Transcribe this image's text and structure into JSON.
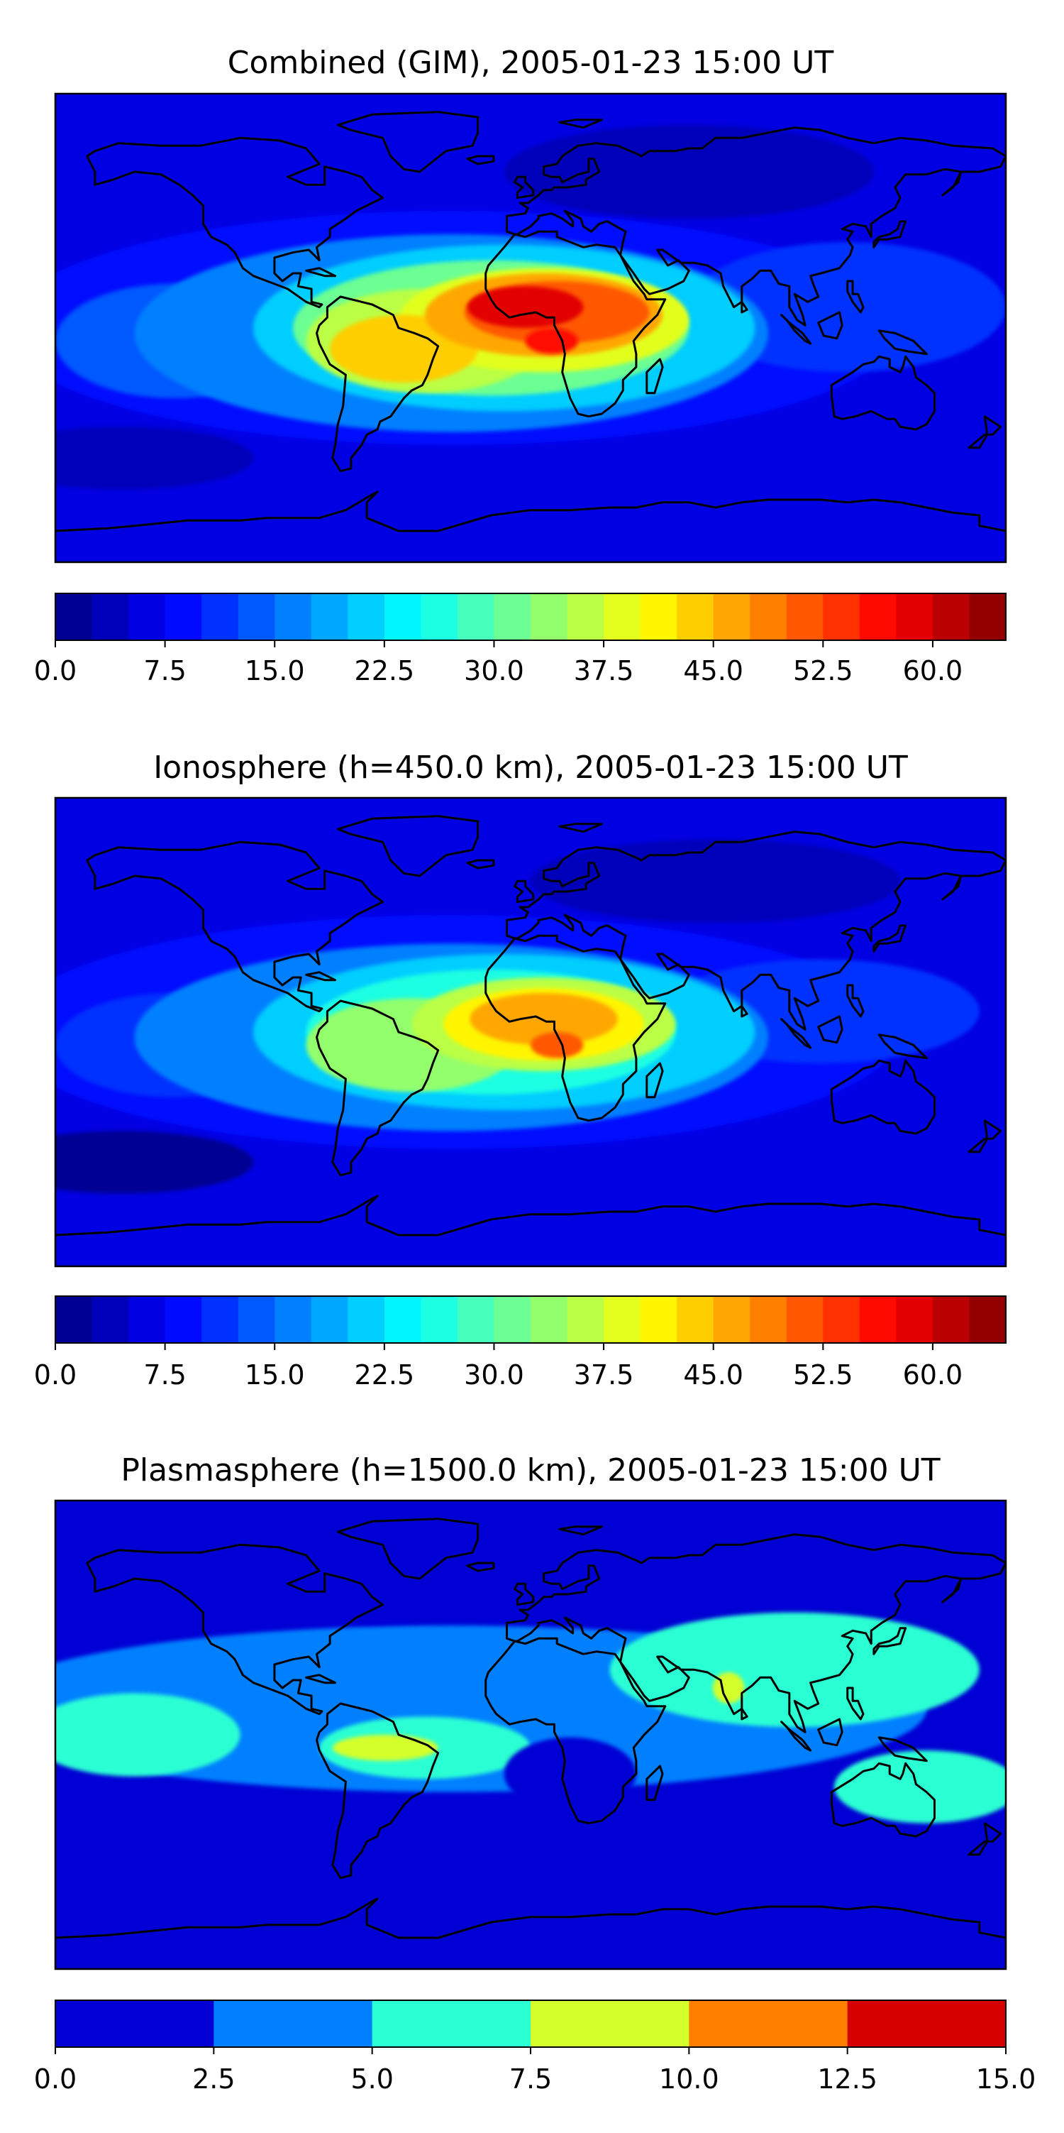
{
  "chart_data": [
    {
      "type": "heatmap",
      "title": "Combined (GIM), 2005-01-23 15:00 UT",
      "xlabel": "",
      "ylabel": "",
      "colorbar": {
        "min": 0.0,
        "max": 65.0,
        "levels": 26,
        "ticks": [
          0.0,
          7.5,
          15.0,
          22.5,
          30.0,
          37.5,
          45.0,
          52.5,
          60.0
        ],
        "tick_labels": [
          "0.0",
          "7.5",
          "15.0",
          "22.5",
          "30.0",
          "37.5",
          "45.0",
          "52.5",
          "60.0"
        ]
      },
      "features": [
        {
          "name": "equatorial-maximum-africa",
          "lon": 0,
          "lat": 5,
          "value": 58
        },
        {
          "name": "equatorial-maximum-south-america",
          "lon": -50,
          "lat": -10,
          "value": 44
        },
        {
          "name": "equatorial-band-west",
          "lon": -120,
          "lat": -5,
          "value": 20
        },
        {
          "name": "equatorial-band-east",
          "lon": 110,
          "lat": 0,
          "value": 17
        },
        {
          "name": "northern-low",
          "lon": 60,
          "lat": 60,
          "value": 4
        },
        {
          "name": "southern-low",
          "lon": -160,
          "lat": -50,
          "value": 3
        }
      ]
    },
    {
      "type": "heatmap",
      "title": "Ionosphere  (h=450.0 km), 2005-01-23 15:00 UT",
      "xlabel": "",
      "ylabel": "",
      "colorbar": {
        "min": 0.0,
        "max": 65.0,
        "levels": 26,
        "ticks": [
          0.0,
          7.5,
          15.0,
          22.5,
          30.0,
          37.5,
          45.0,
          52.5,
          60.0
        ],
        "tick_labels": [
          "0.0",
          "7.5",
          "15.0",
          "22.5",
          "30.0",
          "37.5",
          "45.0",
          "52.5",
          "60.0"
        ]
      },
      "features": [
        {
          "name": "equatorial-maximum-africa",
          "lon": 5,
          "lat": 0,
          "value": 50
        },
        {
          "name": "equatorial-maximum-south-america",
          "lon": -50,
          "lat": -10,
          "value": 38
        },
        {
          "name": "equatorial-band-west",
          "lon": -120,
          "lat": -5,
          "value": 15
        },
        {
          "name": "equatorial-band-east",
          "lon": 100,
          "lat": 5,
          "value": 14
        },
        {
          "name": "northern-low",
          "lon": 60,
          "lat": 55,
          "value": 3
        },
        {
          "name": "southern-low",
          "lon": -160,
          "lat": -50,
          "value": 2
        }
      ]
    },
    {
      "type": "heatmap",
      "title": "Plasmasphere (h=1500.0 km), 2005-01-23 15:00 UT",
      "xlabel": "",
      "ylabel": "",
      "colorbar": {
        "min": 0.0,
        "max": 15.0,
        "levels": 6,
        "ticks": [
          0.0,
          2.5,
          5.0,
          7.5,
          10.0,
          12.5,
          15.0
        ],
        "tick_labels": [
          "0.0",
          "2.5",
          "5.0",
          "7.5",
          "10.0",
          "12.5",
          "15.0"
        ]
      },
      "features": [
        {
          "name": "south-america-maximum",
          "lon": -55,
          "lat": -5,
          "value": 8.5
        },
        {
          "name": "india-maximum",
          "lon": 75,
          "lat": 18,
          "value": 8.0
        },
        {
          "name": "low-latitude-band-west",
          "lon": -140,
          "lat": 0,
          "value": 6
        },
        {
          "name": "low-latitude-band-east",
          "lon": 110,
          "lat": 15,
          "value": 6
        },
        {
          "name": "south-atlantic-minimum",
          "lon": 10,
          "lat": -15,
          "value": 1.5
        },
        {
          "name": "northern-minimum",
          "lon": -60,
          "lat": 55,
          "value": 1
        },
        {
          "name": "southern-minimum",
          "lon": 90,
          "lat": -45,
          "value": 1
        }
      ]
    }
  ]
}
